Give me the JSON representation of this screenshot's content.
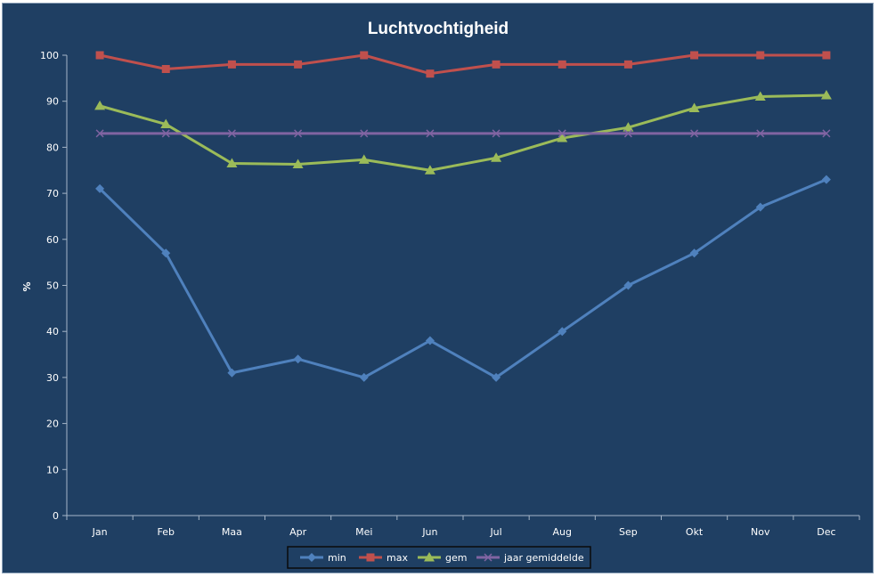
{
  "chart_data": {
    "type": "line",
    "title": "Luchtvochtigheid",
    "xlabel": "",
    "ylabel": "%",
    "ylim": [
      0,
      100
    ],
    "yticks": [
      0,
      10,
      20,
      30,
      40,
      50,
      60,
      70,
      80,
      90,
      100
    ],
    "categories": [
      "Jan",
      "Feb",
      "Maa",
      "Apr",
      "Mei",
      "Jun",
      "Jul",
      "Aug",
      "Sep",
      "Okt",
      "Nov",
      "Dec"
    ],
    "grid": false,
    "legend_position": "bottom",
    "series": [
      {
        "name": "min",
        "color": "#4f81bd",
        "marker": "diamond",
        "values": [
          71,
          57,
          31,
          34,
          30,
          38,
          30,
          40,
          50,
          57,
          67,
          73
        ]
      },
      {
        "name": "max",
        "color": "#c0504d",
        "marker": "square",
        "values": [
          100,
          97,
          98,
          98,
          100,
          96,
          98,
          98,
          98,
          100,
          100,
          100
        ]
      },
      {
        "name": "gem",
        "color": "#9bbb59",
        "marker": "triangle",
        "values": [
          89,
          85,
          76.5,
          76.3,
          77.3,
          75,
          77.7,
          82,
          84.3,
          88.5,
          91,
          91.3
        ]
      },
      {
        "name": "jaar gemiddelde",
        "color": "#8064a2",
        "marker": "x",
        "values": [
          83,
          83,
          83,
          83,
          83,
          83,
          83,
          83,
          83,
          83,
          83,
          83
        ]
      }
    ]
  }
}
